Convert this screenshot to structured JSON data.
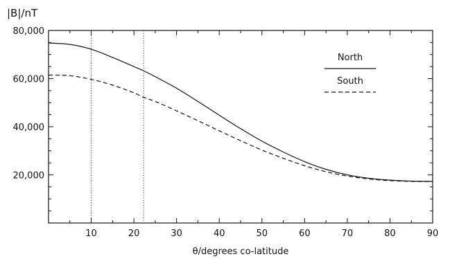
{
  "chart_data": {
    "type": "line",
    "title": "",
    "ylabel": "|B|/nT",
    "xlabel": "θ/degrees co-latitude",
    "xlim": [
      0,
      90
    ],
    "ylim": [
      0,
      80000
    ],
    "x_ticks": [
      10,
      20,
      30,
      40,
      50,
      60,
      70,
      80,
      90
    ],
    "y_ticks": [
      20000,
      40000,
      60000,
      80000
    ],
    "y_tick_labels": [
      "20,000",
      "40,000",
      "60,000",
      "80,000"
    ],
    "reference_lines_x": [
      10,
      22.3
    ],
    "legend_position": "top-right",
    "grid": false,
    "series": [
      {
        "name": "North",
        "style": "solid",
        "x": [
          0,
          5,
          10,
          15,
          20,
          22.3,
          25,
          30,
          35,
          40,
          45,
          50,
          55,
          60,
          65,
          70,
          75,
          80,
          85,
          90
        ],
        "values": [
          74800,
          74200,
          72200,
          68800,
          65000,
          63200,
          60800,
          56000,
          50500,
          44800,
          39200,
          34000,
          29500,
          25500,
          22300,
          20000,
          18600,
          17800,
          17400,
          17300
        ]
      },
      {
        "name": "South",
        "style": "dashed",
        "x": [
          0,
          5,
          10,
          15,
          20,
          22.3,
          25,
          30,
          35,
          40,
          45,
          50,
          55,
          60,
          65,
          70,
          75,
          80,
          85,
          90
        ],
        "values": [
          61500,
          61200,
          59700,
          57300,
          54100,
          52200,
          50500,
          46600,
          42500,
          38300,
          34200,
          30300,
          26900,
          23800,
          21300,
          19500,
          18300,
          17600,
          17300,
          17200
        ]
      }
    ]
  }
}
